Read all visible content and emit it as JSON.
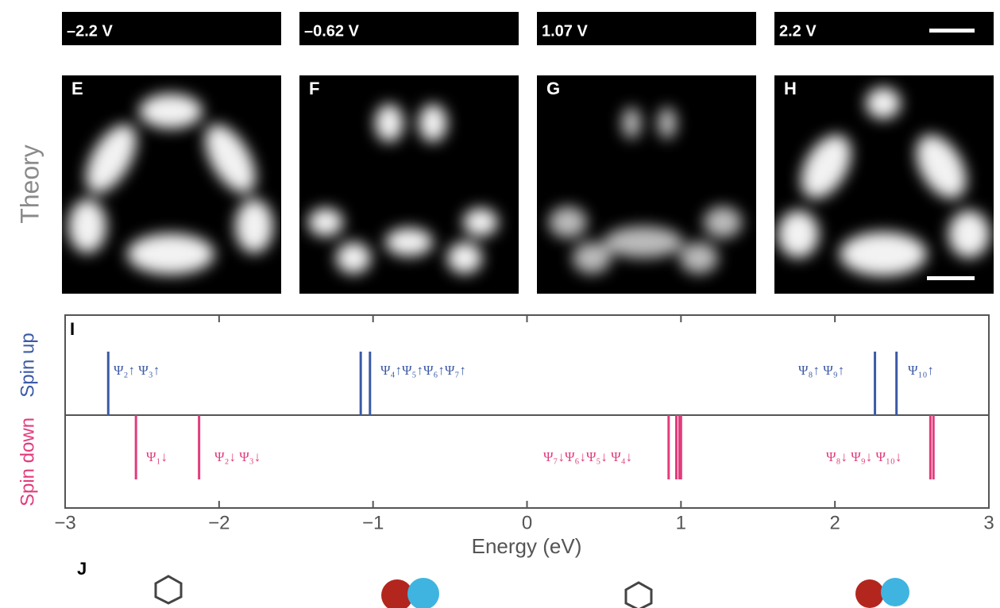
{
  "voltage_labels": [
    "–2.2 V",
    "–0.62 V",
    "1.07 V",
    "2.2 V"
  ],
  "panel_letters": [
    "E",
    "F",
    "G",
    "H"
  ],
  "row_label": "Theory",
  "bottom_panel_letter": "J",
  "chart_data": {
    "type": "levels",
    "panel_letter": "I",
    "xlabel": "Energy (eV)",
    "xlim": [
      -3,
      3
    ],
    "xticks": [
      {
        "value": -3,
        "label": "−3"
      },
      {
        "value": -2,
        "label": "−2"
      },
      {
        "value": -1,
        "label": "−1"
      },
      0,
      1,
      2,
      3
    ],
    "series": [
      {
        "name": "Spin up",
        "color": "#3b5aa6",
        "values": [
          -2.72,
          -1.08,
          -1.02,
          2.26,
          2.4
        ]
      },
      {
        "name": "Spin down",
        "color": "#e23c7c",
        "values": [
          -2.54,
          -2.13,
          0.92,
          0.97,
          0.99,
          1.0,
          2.62,
          2.64
        ]
      }
    ],
    "annotations": [
      "Ψ₂↑ Ψ₃↑",
      "Ψ₄↑Ψ₅↑Ψ₆↑Ψ₇↑",
      "Ψ₈↑ Ψ₉↑",
      "Ψ₁₀↑",
      "Ψ₁↓",
      "Ψ₂↓ Ψ₃↓",
      "Ψ₇↓Ψ₆↓Ψ₅↓ Ψ₄↓",
      "Ψ₈↓ Ψ₉↓ Ψ₁₀↓"
    ]
  }
}
